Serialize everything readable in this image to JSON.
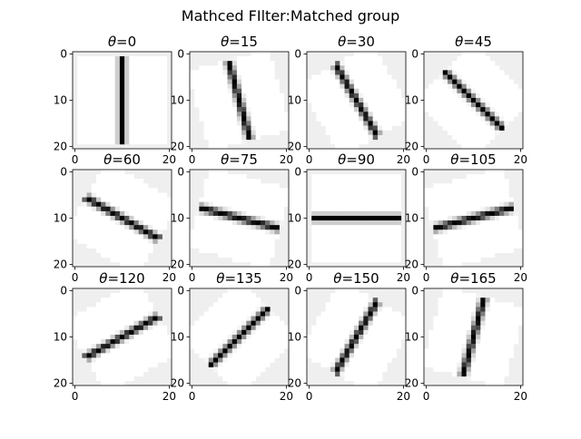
{
  "figure": {
    "title": "Mathced FIlter:Matched group"
  },
  "chart_data": {
    "type": "heatmap",
    "grid": {
      "rows": 3,
      "cols": 4
    },
    "colormap": "gray_r",
    "image_size": 21,
    "xticks": [
      "0",
      "20"
    ],
    "yticks": [
      "0",
      "10",
      "20"
    ],
    "panels": [
      {
        "title_prefix": "θ",
        "angle": 0,
        "title": "=0",
        "kernel_length": 18
      },
      {
        "title_prefix": "θ",
        "angle": 15,
        "title": "=15",
        "kernel_length": 17
      },
      {
        "title_prefix": "θ",
        "angle": 30,
        "title": "=30",
        "kernel_length": 17
      },
      {
        "title_prefix": "θ",
        "angle": 45,
        "title": "=45",
        "kernel_length": 18
      },
      {
        "title_prefix": "θ",
        "angle": 60,
        "title": "=60",
        "kernel_length": 17
      },
      {
        "title_prefix": "θ",
        "angle": 75,
        "title": "=75",
        "kernel_length": 17
      },
      {
        "title_prefix": "θ",
        "angle": 90,
        "title": "=90",
        "kernel_length": 18
      },
      {
        "title_prefix": "θ",
        "angle": 105,
        "title": "=105",
        "kernel_length": 17
      },
      {
        "title_prefix": "θ",
        "angle": 120,
        "title": "=120",
        "kernel_length": 17
      },
      {
        "title_prefix": "θ",
        "angle": 135,
        "title": "=135",
        "kernel_length": 18
      },
      {
        "title_prefix": "θ",
        "angle": 150,
        "title": "=150",
        "kernel_length": 17
      },
      {
        "title_prefix": "θ",
        "angle": 165,
        "title": "=165",
        "kernel_length": 17
      }
    ]
  }
}
